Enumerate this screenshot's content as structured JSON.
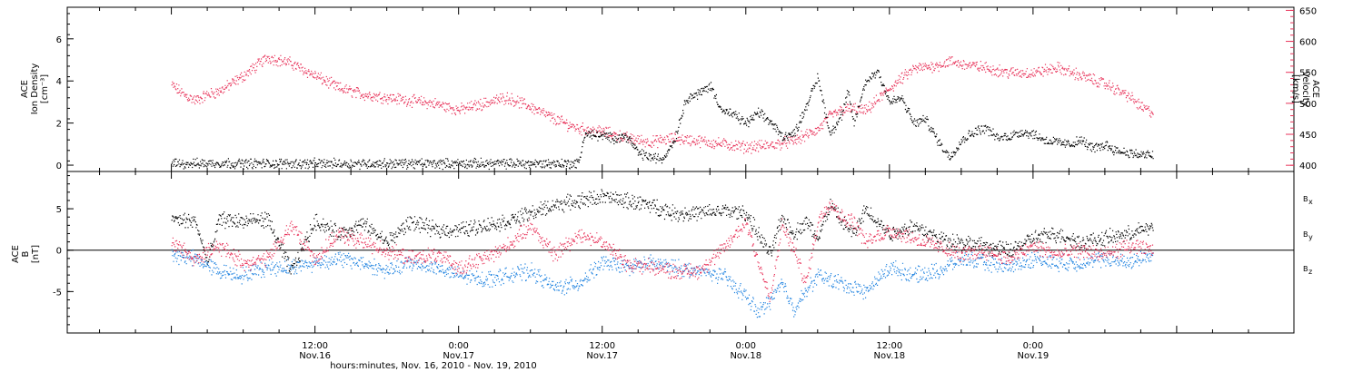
{
  "chart_data": [
    {
      "type": "scatter",
      "panel": "plasma",
      "ylabel_left_lines": [
        "ACE",
        "Ion Density",
        "[cm⁻³]"
      ],
      "ylabel_right_lines": [
        "ACE",
        "Velocity",
        "[km/s]"
      ],
      "left_axis": {
        "ylim": [
          -0.3,
          7.5
        ],
        "ticks": [
          0,
          2,
          4,
          6
        ],
        "color": "#000000"
      },
      "right_axis": {
        "ylim": [
          390,
          655
        ],
        "ticks": [
          400,
          450,
          500,
          550,
          600,
          650
        ],
        "color": "#e8335a"
      },
      "series": [
        {
          "axis": "left",
          "color": "#000000",
          "x": [
            0,
            2,
            4,
            6,
            8,
            10,
            12,
            14,
            16,
            18,
            20,
            22,
            24,
            26,
            28,
            30,
            32,
            34,
            34.5,
            36,
            37,
            38,
            39,
            40,
            41,
            42,
            43,
            44,
            45,
            46,
            47,
            48,
            49,
            50,
            51,
            52,
            53,
            54,
            55,
            56,
            56.5,
            57,
            58,
            59,
            60,
            61,
            62,
            63,
            64,
            65,
            66,
            67,
            68,
            69,
            70,
            71,
            72,
            73,
            74,
            75,
            76,
            77,
            78,
            79,
            80,
            81,
            82
          ],
          "y": [
            0.1,
            0.1,
            0.12,
            0.1,
            0.1,
            0.1,
            0.1,
            0.1,
            0.1,
            0.1,
            0.1,
            0.1,
            0.1,
            0.1,
            0.1,
            0.1,
            0.1,
            0.1,
            1.5,
            1.4,
            1.3,
            1.4,
            0.6,
            0.4,
            0.3,
            1.2,
            3.2,
            3.4,
            3.8,
            2.6,
            2.4,
            2.0,
            2.5,
            2.1,
            1.4,
            1.5,
            2.8,
            4.2,
            1.5,
            2.4,
            3.5,
            2.0,
            4.0,
            4.5,
            3.0,
            3.2,
            2.0,
            2.2,
            1.2,
            0.4,
            1.2,
            1.6,
            1.8,
            1.3,
            1.4,
            1.6,
            1.5,
            1.2,
            1.1,
            1.0,
            1.2,
            0.8,
            1.0,
            0.7,
            0.6,
            0.5,
            0.5
          ]
        },
        {
          "axis": "right",
          "color": "#e8335a",
          "x": [
            0,
            1,
            2,
            3,
            4,
            6,
            8,
            10,
            12,
            14,
            16,
            18,
            20,
            22,
            24,
            26,
            28,
            30,
            32,
            34,
            36,
            38,
            40,
            42,
            44,
            46,
            48,
            50,
            52,
            54,
            55,
            56,
            57,
            58,
            60,
            62,
            64,
            65,
            66,
            68,
            70,
            72,
            74,
            76,
            78,
            80,
            81,
            82
          ],
          "y": [
            530,
            515,
            505,
            515,
            520,
            545,
            575,
            565,
            545,
            525,
            515,
            510,
            505,
            500,
            490,
            500,
            510,
            495,
            475,
            460,
            455,
            445,
            438,
            444,
            440,
            435,
            430,
            433,
            440,
            458,
            480,
            490,
            492,
            488,
            525,
            556,
            562,
            568,
            564,
            558,
            550,
            550,
            558,
            545,
            532,
            512,
            495,
            485
          ]
        }
      ]
    },
    {
      "type": "scatter",
      "panel": "magnetic-field",
      "ylabel_lines": [
        "ACE",
        "B",
        "[nT]"
      ],
      "ylim": [
        -10,
        9.5
      ],
      "yticks": [
        -5,
        0,
        5
      ],
      "zero_line": true,
      "legend": [
        {
          "label": "B",
          "sub": "x",
          "color": "#000000"
        },
        {
          "label": "B",
          "sub": "y",
          "color": "#1e82e0"
        },
        {
          "label": "B",
          "sub": "z",
          "color": "#e8335a"
        }
      ],
      "series": [
        {
          "name": "Bx",
          "color": "#000000",
          "x": [
            0,
            2,
            3,
            4,
            6,
            8,
            10,
            12,
            14,
            16,
            18,
            20,
            22,
            24,
            26,
            28,
            30,
            32,
            34,
            36,
            38,
            40,
            42,
            44,
            46,
            48,
            50,
            51,
            52,
            53,
            54,
            55,
            56,
            57,
            58,
            60,
            62,
            64,
            66,
            68,
            70,
            72,
            74,
            76,
            78,
            80,
            81,
            82
          ],
          "y": [
            3.8,
            3.5,
            -1.5,
            3.8,
            3.5,
            3.8,
            -2.5,
            3.6,
            2.0,
            3.2,
            1.0,
            3.5,
            2.5,
            2.5,
            3.0,
            3.5,
            4.5,
            5.5,
            6.0,
            6.5,
            6.0,
            5.5,
            4.5,
            4.5,
            4.8,
            4.5,
            -0.5,
            4.0,
            2.0,
            3.5,
            1.5,
            5.5,
            3.5,
            2.0,
            5.0,
            2.0,
            3.0,
            1.5,
            1.0,
            0.5,
            0.0,
            1.5,
            2.0,
            1.0,
            1.5,
            2.0,
            2.5,
            2.8
          ]
        },
        {
          "name": "By",
          "color": "#1e82e0",
          "x": [
            0,
            2,
            4,
            6,
            8,
            10,
            12,
            14,
            16,
            18,
            20,
            22,
            24,
            26,
            28,
            30,
            32,
            34,
            36,
            38,
            40,
            42,
            44,
            46,
            48,
            49,
            50,
            51,
            52,
            53,
            54,
            56,
            58,
            60,
            62,
            64,
            66,
            68,
            70,
            72,
            74,
            76,
            78,
            80,
            81,
            82
          ],
          "y": [
            -0.5,
            -1.0,
            -2.5,
            -3.0,
            -2.0,
            -2.0,
            -1.5,
            -1.0,
            -1.5,
            -2.5,
            -1.5,
            -2.0,
            -3.0,
            -3.5,
            -3.0,
            -2.5,
            -4.5,
            -4.0,
            -1.5,
            -2.0,
            -1.5,
            -2.0,
            -2.5,
            -3.0,
            -5.5,
            -7.5,
            -6.0,
            -4.0,
            -7.0,
            -5.0,
            -3.0,
            -4.0,
            -5.0,
            -2.0,
            -3.0,
            -2.5,
            -1.0,
            -1.5,
            -2.0,
            -1.0,
            -1.5,
            -1.5,
            -1.0,
            -1.5,
            -0.8,
            -0.6
          ]
        },
        {
          "name": "Bz",
          "color": "#e8335a",
          "x": [
            0,
            2,
            4,
            6,
            8,
            10,
            12,
            14,
            16,
            18,
            20,
            22,
            24,
            26,
            28,
            30,
            32,
            34,
            36,
            38,
            40,
            42,
            44,
            46,
            48,
            50,
            51,
            52,
            53,
            54,
            55,
            56,
            57,
            58,
            60,
            62,
            64,
            66,
            68,
            70,
            72,
            74,
            76,
            78,
            80,
            82
          ],
          "y": [
            1.0,
            -1.0,
            0.5,
            -1.5,
            -1.0,
            3.0,
            -1.0,
            2.0,
            1.0,
            0.0,
            -1.0,
            -0.5,
            -2.0,
            -1.0,
            0.5,
            3.0,
            -0.5,
            2.0,
            1.0,
            -1.5,
            -2.0,
            -2.5,
            -2.5,
            0.0,
            3.5,
            -6.0,
            3.0,
            0.0,
            -4.0,
            3.5,
            6.0,
            4.0,
            3.5,
            1.0,
            2.5,
            1.5,
            0.5,
            -0.5,
            0.0,
            -1.0,
            0.5,
            -0.5,
            0.0,
            -0.5,
            0.5,
            0.0
          ]
        }
      ]
    }
  ],
  "x_axis": {
    "range_hours": [
      -8.7,
      93.8
    ],
    "ticks": [
      {
        "h": 12,
        "time": "12:00",
        "date": "Nov.16"
      },
      {
        "h": 24,
        "time": "0:00",
        "date": "Nov.17"
      },
      {
        "h": 36,
        "time": "12:00",
        "date": "Nov.17"
      },
      {
        "h": 48,
        "time": "0:00",
        "date": "Nov.18"
      },
      {
        "h": 60,
        "time": "12:00",
        "date": "Nov.18"
      },
      {
        "h": 72,
        "time": "0:00",
        "date": "Nov.19"
      }
    ],
    "label": "hours:minutes, Nov. 16, 2010 - Nov. 19, 2010"
  }
}
